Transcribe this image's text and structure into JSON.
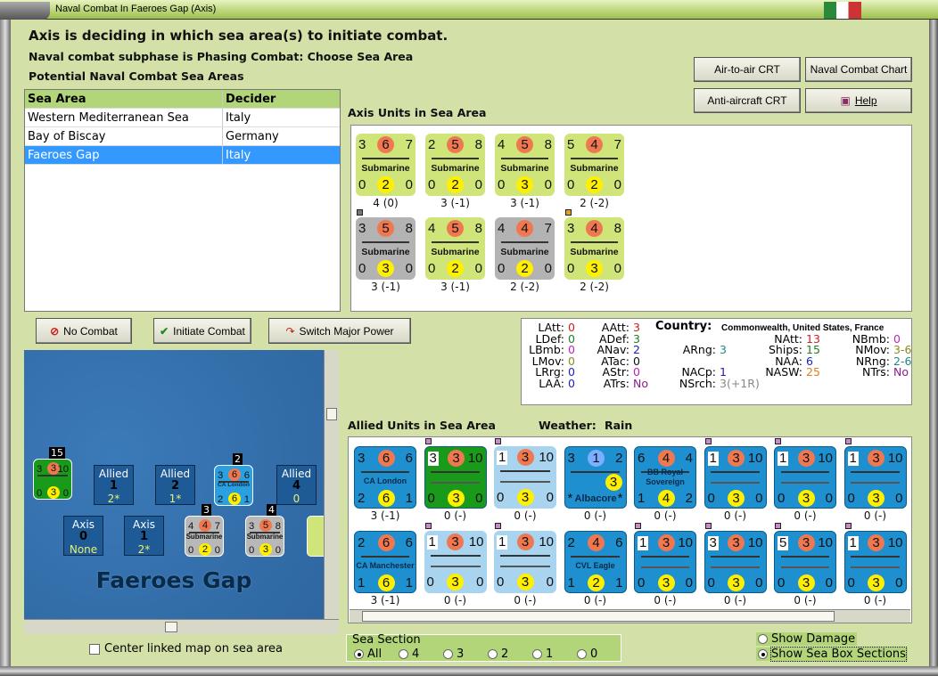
{
  "window": {
    "title": "Naval Combat In Faeroes Gap (Axis)"
  },
  "header": {
    "line1": "Axis is deciding in which sea area(s) to initiate combat.",
    "line2": "Naval combat subphase is Phasing Combat: Choose Sea Area",
    "line3": "Potential Naval Combat Sea Areas"
  },
  "buttons": {
    "air_to_air": "Air-to-air CRT",
    "naval_chart": "Naval Combat Chart",
    "anti_aircraft": "Anti-aircraft CRT",
    "help": "Help",
    "no_combat": "No Combat",
    "initiate": "Initiate Combat",
    "switch": "Switch Major Power"
  },
  "table": {
    "headers": [
      "Sea Area",
      "Decider"
    ],
    "rows": [
      [
        "Western Mediterranean Sea",
        "Italy"
      ],
      [
        "Bay of Biscay",
        "Germany"
      ],
      [
        "Faeroes Gap",
        "Italy"
      ]
    ],
    "selected": 2
  },
  "axis_units": {
    "label": "Axis Units in Sea Area",
    "counters": [
      {
        "top": [
          "3",
          "6",
          "7"
        ],
        "bottom": [
          "0",
          "2",
          "0"
        ],
        "name": "Submarine",
        "bg": "#cfe57a",
        "value": "4 (0)"
      },
      {
        "top": [
          "2",
          "5",
          "8"
        ],
        "bottom": [
          "0",
          "2",
          "0"
        ],
        "name": "Submarine",
        "bg": "#cfe57a",
        "value": "3 (-1)"
      },
      {
        "top": [
          "4",
          "5",
          "8"
        ],
        "bottom": [
          "0",
          "3",
          "0"
        ],
        "name": "Submarine",
        "bg": "#cfe57a",
        "value": "3 (-1)"
      },
      {
        "top": [
          "5",
          "4",
          "7"
        ],
        "bottom": [
          "0",
          "2",
          "0"
        ],
        "name": "Submarine",
        "bg": "#cfe57a",
        "value": "2 (-2)"
      },
      {
        "top": [
          "3",
          "5",
          "8"
        ],
        "bottom": [
          "0",
          "3",
          "0"
        ],
        "name": "Submarine",
        "bg": "#b3b3b3",
        "value": "3 (-1)",
        "marker": "#777777"
      },
      {
        "top": [
          "4",
          "5",
          "8"
        ],
        "bottom": [
          "0",
          "2",
          "0"
        ],
        "name": "Submarine",
        "bg": "#cfe57a",
        "value": "3 (-1)"
      },
      {
        "top": [
          "4",
          "4",
          "7"
        ],
        "bottom": [
          "0",
          "2",
          "0"
        ],
        "name": "Submarine",
        "bg": "#b3b3b3",
        "value": "2 (-2)"
      },
      {
        "top": [
          "3",
          "4",
          "8"
        ],
        "bottom": [
          "0",
          "3",
          "0"
        ],
        "name": "Submarine",
        "bg": "#cfe57a",
        "value": "2 (-2)",
        "marker": "#e0a020"
      }
    ]
  },
  "info": {
    "col1": [
      [
        "LAtt:",
        "0",
        "#d02020"
      ],
      [
        "LDef:",
        "0",
        "#208020"
      ],
      [
        "LBmb:",
        "0",
        "#c020c0"
      ],
      [
        "LMov:",
        "0",
        "#8a8a20"
      ],
      [
        "LRrg:",
        "0",
        "#2020c0"
      ],
      [
        "LAA:",
        "0",
        "#2020c0"
      ]
    ],
    "col2": [
      [
        "AAtt:",
        "3",
        "#d02020"
      ],
      [
        "ADef:",
        "3",
        "#208020"
      ],
      [
        "ANav:",
        "2",
        "#2020c0"
      ],
      [
        "ATac:",
        "0",
        "#111111"
      ],
      [
        "AStr:",
        "0",
        "#c020c0"
      ],
      [
        "ATrs:",
        "No",
        "#8a208a"
      ]
    ],
    "col3": [
      [
        "ARng:",
        "3",
        "#208a8a"
      ],
      [
        "NACp:",
        "1",
        "#2020a0"
      ],
      [
        "NSrch:",
        "3(+1R)",
        "#888888"
      ]
    ],
    "col4": [
      [
        "NAtt:",
        "13",
        "#d02020"
      ],
      [
        "Ships:",
        "15",
        "#208020"
      ],
      [
        "NAA:",
        "6",
        "#2020c0"
      ],
      [
        "NASW:",
        "25",
        "#e08020"
      ]
    ],
    "col5": [
      [
        "NBmb:",
        "0",
        "#c020c0"
      ],
      [
        "NMov:",
        "3-6",
        "#8a8a20"
      ],
      [
        "NRng:",
        "2-6",
        "#208a8a"
      ],
      [
        "NTrs:",
        "No",
        "#8a208a"
      ]
    ],
    "country_label": "Country:",
    "country": "Commonwealth, United States, France"
  },
  "allied_units": {
    "label": "Allied Units in Sea Area",
    "weather_label": "Weather:",
    "weather": "Rain",
    "counters": [
      {
        "top": [
          "3",
          "6",
          "6"
        ],
        "bottom": [
          "2",
          "6",
          "1"
        ],
        "name": "CA London",
        "bg": "#1e8fcf",
        "value": "3 (-1)"
      },
      {
        "top": [
          "3",
          "3",
          "10"
        ],
        "bottom": [
          "0",
          "3",
          "0"
        ],
        "name": "",
        "bg": "#1a9a1a",
        "value": "0 (-)",
        "box": true,
        "marker": "#c98ac9"
      },
      {
        "top": [
          "1",
          "3",
          "10"
        ],
        "bottom": [
          "0",
          "3",
          "0"
        ],
        "name": "",
        "bg": "#a8d4f0",
        "value": "0 (-)",
        "box": true,
        "marker": "#c98ac9"
      },
      {
        "top": [
          "3",
          "1",
          "2"
        ],
        "bottom": [
          "*",
          "3",
          "*"
        ],
        "name": "Albacore",
        "bg": "#1e8fcf",
        "value": "0 (-)",
        "air": true
      },
      {
        "top": [
          "6",
          "4",
          "4"
        ],
        "bottom": [
          "1",
          "4",
          "2"
        ],
        "name": "BB Royal Sovereign",
        "bg": "#1e8fcf",
        "value": "0 (-)"
      },
      {
        "top": [
          "1",
          "3",
          "10"
        ],
        "bottom": [
          "0",
          "3",
          "0"
        ],
        "name": "",
        "bg": "#1e8fcf",
        "value": "0 (-)",
        "box": true,
        "marker": "#c98ac9"
      },
      {
        "top": [
          "1",
          "3",
          "10"
        ],
        "bottom": [
          "0",
          "3",
          "0"
        ],
        "name": "",
        "bg": "#1e8fcf",
        "value": "0 (-)",
        "box": true,
        "marker": "#c98ac9"
      },
      {
        "top": [
          "1",
          "3",
          "10"
        ],
        "bottom": [
          "0",
          "3",
          "0"
        ],
        "name": "",
        "bg": "#1e8fcf",
        "value": "0 (-)",
        "box": true,
        "marker": "#c98ac9"
      },
      {
        "top": [
          "2",
          "6",
          "6"
        ],
        "bottom": [
          "1",
          "6",
          "1"
        ],
        "name": "CA Manchester",
        "bg": "#1e8fcf",
        "value": "3 (-1)"
      },
      {
        "top": [
          "1",
          "3",
          "10"
        ],
        "bottom": [
          "0",
          "3",
          "0"
        ],
        "name": "",
        "bg": "#a8d4f0",
        "value": "0 (-)",
        "box": true,
        "marker": "#c98ac9"
      },
      {
        "top": [
          "1",
          "3",
          "10"
        ],
        "bottom": [
          "0",
          "3",
          "0"
        ],
        "name": "",
        "bg": "#a8d4f0",
        "value": "0 (-)",
        "box": true,
        "marker": "#c98ac9"
      },
      {
        "top": [
          "2",
          "4",
          "6"
        ],
        "bottom": [
          "1",
          "2",
          "1"
        ],
        "name": "CVL Eagle",
        "bg": "#1e8fcf",
        "value": "0 (-)"
      },
      {
        "top": [
          "1",
          "3",
          "10"
        ],
        "bottom": [
          "0",
          "3",
          "0"
        ],
        "name": "",
        "bg": "#1e8fcf",
        "value": "0 (-)",
        "box": true,
        "marker": "#c98ac9"
      },
      {
        "top": [
          "3",
          "3",
          "10"
        ],
        "bottom": [
          "0",
          "3",
          "0"
        ],
        "name": "",
        "bg": "#1e8fcf",
        "value": "0 (-)",
        "box": true,
        "marker": "#c98ac9"
      },
      {
        "top": [
          "5",
          "3",
          "10"
        ],
        "bottom": [
          "0",
          "3",
          "0"
        ],
        "name": "",
        "bg": "#1e8fcf",
        "value": "0 (-)",
        "box": true,
        "marker": "#c98ac9"
      },
      {
        "top": [
          "1",
          "3",
          "10"
        ],
        "bottom": [
          "0",
          "3",
          "0"
        ],
        "name": "",
        "bg": "#1e8fcf",
        "value": "0 (-)",
        "box": true,
        "marker": "#c98ac9"
      }
    ]
  },
  "map": {
    "sea_name": "Faeroes Gap",
    "stack_counts": [
      "15",
      "2",
      "3",
      "4"
    ],
    "allied_boxes": [
      {
        "side": "Allied",
        "num": "1",
        "val": "2*"
      },
      {
        "side": "Allied",
        "num": "2",
        "val": "1*"
      },
      {
        "side": "Allied",
        "num": "4",
        "val": "0"
      }
    ],
    "axis_boxes": [
      {
        "side": "Axis",
        "num": "0",
        "val": "None"
      },
      {
        "side": "Axis",
        "num": "1",
        "val": "2*"
      }
    ],
    "map_counters": [
      {
        "top": [
          "3",
          "3",
          "10"
        ],
        "bottom": [
          "0",
          "3",
          "0"
        ],
        "name": "",
        "bg": "#1a9a1a"
      },
      {
        "top": [
          "3",
          "6",
          "6"
        ],
        "bottom": [
          "2",
          "6",
          "1"
        ],
        "name": "CA London",
        "bg": "#2aa0e0"
      },
      {
        "top": [
          "4",
          "4",
          "7"
        ],
        "bottom": [
          "0",
          "2",
          "0"
        ],
        "name": "Submarine",
        "bg": "#b8b8b8"
      },
      {
        "top": [
          "3",
          "5",
          "8"
        ],
        "bottom": [
          "0",
          "3",
          "0"
        ],
        "name": "Submarine",
        "bg": "#b8b8b8"
      }
    ]
  },
  "options": {
    "center_map": "Center linked map on sea area",
    "center_map_checked": false,
    "sea_section_label": "Sea Section",
    "sea_sections": [
      "All",
      "4",
      "3",
      "2",
      "1",
      "0"
    ],
    "sea_section_selected": 0,
    "show_damage": "Show Damage",
    "show_sections": "Show Sea Box Sections",
    "show_selected": "Show Sea Box Sections"
  }
}
